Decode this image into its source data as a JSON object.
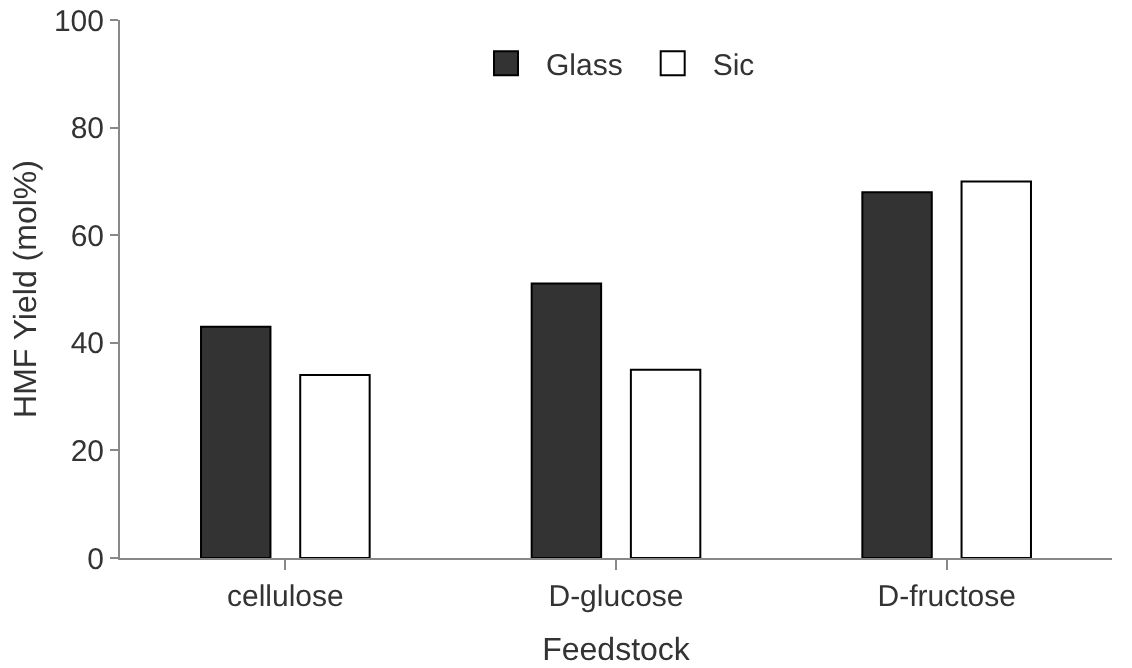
{
  "chart_data": {
    "type": "bar",
    "xlabel": "Feedstock",
    "ylabel": "HMF Yield (mol%)",
    "categories": [
      "cellulose",
      "D-glucose",
      "D-fructose"
    ],
    "series": [
      {
        "name": "Glass",
        "color": "#333333",
        "values": [
          43,
          51,
          68
        ]
      },
      {
        "name": "Sic",
        "color": "#ffffff",
        "values": [
          34,
          35,
          70
        ]
      }
    ],
    "ylim": [
      0,
      100
    ],
    "yticks": [
      0,
      20,
      40,
      60,
      80,
      100
    ],
    "legend": "top"
  }
}
